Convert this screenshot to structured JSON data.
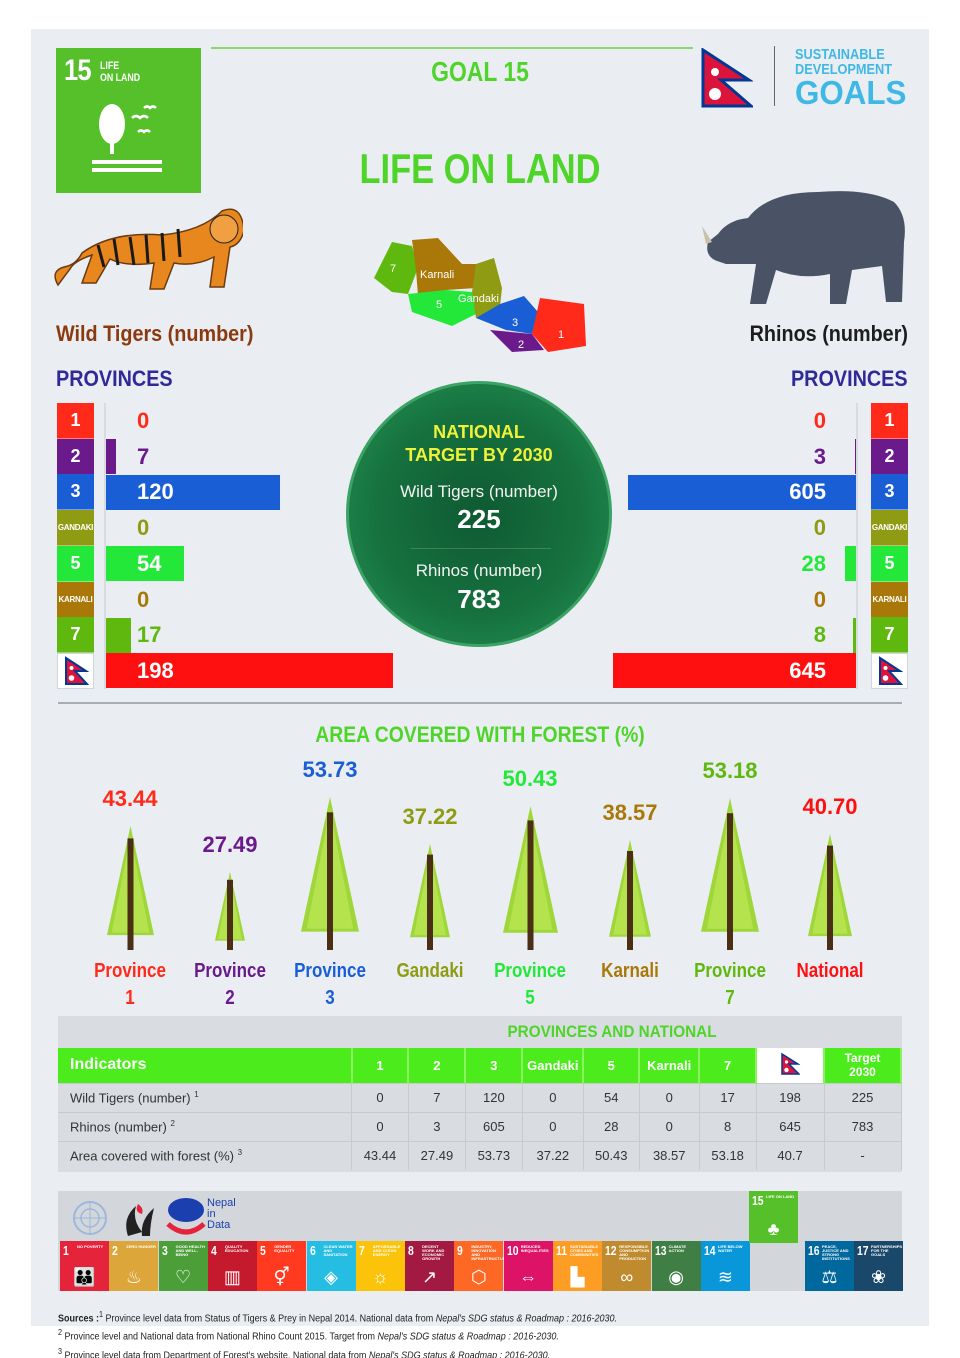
{
  "header": {
    "badge_number": "15",
    "badge_label_line1": "LIFE",
    "badge_label_line2": "ON LAND",
    "goal": "GOAL 15",
    "title": "LIFE ON LAND",
    "sdg_logo_line1": "SUSTAINABLE",
    "sdg_logo_line2": "DEVELOPMENT",
    "sdg_logo_line3": "GOALS"
  },
  "colors": {
    "p1": "#ff2a1a",
    "p2": "#6b1a8c",
    "p3": "#1a5ed6",
    "gandaki": "#8f9b12",
    "p5": "#23e83a",
    "karnali": "#a97808",
    "p7": "#5fb80e",
    "national": "#ff1010",
    "green_title": "#4fd42a",
    "provinces_heading": "#2f2a98"
  },
  "map": {
    "labels": [
      "7",
      "Karnali",
      "5",
      "Gandaki",
      "3",
      "2",
      "1"
    ]
  },
  "tigers": {
    "label": "Wild Tigers (number)",
    "provinces_heading": "PROVINCES",
    "rows": [
      {
        "key": "1",
        "value": "0"
      },
      {
        "key": "2",
        "value": "7"
      },
      {
        "key": "3",
        "value": "120"
      },
      {
        "key": "GANDAKI",
        "value": "0"
      },
      {
        "key": "5",
        "value": "54"
      },
      {
        "key": "KARNALI",
        "value": "0"
      },
      {
        "key": "7",
        "value": "17"
      },
      {
        "key": "flag",
        "value": "198"
      }
    ]
  },
  "rhinos": {
    "label": "Rhinos (number)",
    "provinces_heading": "PROVINCES",
    "rows": [
      {
        "key": "1",
        "value": "0"
      },
      {
        "key": "2",
        "value": "3"
      },
      {
        "key": "3",
        "value": "605"
      },
      {
        "key": "GANDAKI",
        "value": "0"
      },
      {
        "key": "5",
        "value": "28"
      },
      {
        "key": "KARNALI",
        "value": "0"
      },
      {
        "key": "7",
        "value": "8"
      },
      {
        "key": "flag",
        "value": "645"
      }
    ]
  },
  "target": {
    "heading_line1": "NATIONAL",
    "heading_line2": "TARGET BY 2030",
    "tigers_label": "Wild Tigers (number)",
    "tigers_value": "225",
    "rhinos_label": "Rhinos (number)",
    "rhinos_value": "783"
  },
  "forest": {
    "title": "AREA COVERED WITH FOREST (%)",
    "items": [
      {
        "value": "43.44",
        "name1": "Province",
        "name2": "1"
      },
      {
        "value": "27.49",
        "name1": "Province",
        "name2": "2"
      },
      {
        "value": "53.73",
        "name1": "Province",
        "name2": "3"
      },
      {
        "value": "37.22",
        "name1": "Gandaki",
        "name2": ""
      },
      {
        "value": "50.43",
        "name1": "Province",
        "name2": "5"
      },
      {
        "value": "38.57",
        "name1": "Karnali",
        "name2": ""
      },
      {
        "value": "53.18",
        "name1": "Province",
        "name2": "7"
      },
      {
        "value": "40.70",
        "name1": "National",
        "name2": ""
      }
    ]
  },
  "table": {
    "title": "PROVINCES AND NATIONAL",
    "headers": [
      "Indicators",
      "1",
      "2",
      "3",
      "Gandaki",
      "5",
      "Karnali",
      "7",
      "flag",
      "Target 2030"
    ],
    "target_line1": "Target",
    "target_line2": "2030",
    "rows": [
      {
        "label": "Wild Tigers (number)",
        "sup": "1",
        "cells": [
          "0",
          "7",
          "120",
          "0",
          "54",
          "0",
          "17",
          "198",
          "225"
        ]
      },
      {
        "label": "Rhinos (number)",
        "sup": "2",
        "cells": [
          "0",
          "3",
          "605",
          "0",
          "28",
          "0",
          "8",
          "645",
          "783"
        ]
      },
      {
        "label": "Area covered with forest (%)",
        "sup": "3",
        "cells": [
          "43.44",
          "27.49",
          "53.73",
          "37.22",
          "50.43",
          "38.57",
          "53.18",
          "40.7",
          "-"
        ]
      }
    ]
  },
  "footer": {
    "nid_line1": "Nepal",
    "nid_line2": "in",
    "nid_line3": "Data",
    "sdg_tiles": [
      {
        "n": "1",
        "t": "NO POVERTY",
        "icon": "family-icon",
        "glyph": "👪",
        "color": "#e5243b"
      },
      {
        "n": "2",
        "t": "ZERO HUNGER",
        "icon": "bowl-icon",
        "glyph": "♨",
        "color": "#dda63a"
      },
      {
        "n": "3",
        "t": "GOOD HEALTH AND WELL-BEING",
        "icon": "heartbeat-icon",
        "glyph": "♡",
        "color": "#4c9f38"
      },
      {
        "n": "4",
        "t": "QUALITY EDUCATION",
        "icon": "book-icon",
        "glyph": "▥",
        "color": "#c5192d"
      },
      {
        "n": "5",
        "t": "GENDER EQUALITY",
        "icon": "gender-icon",
        "glyph": "⚥",
        "color": "#ff3a21"
      },
      {
        "n": "6",
        "t": "CLEAN WATER AND SANITATION",
        "icon": "water-icon",
        "glyph": "◈",
        "color": "#26bde2"
      },
      {
        "n": "7",
        "t": "AFFORDABLE AND CLEAN ENERGY",
        "icon": "sun-icon",
        "glyph": "☼",
        "color": "#fcc30b"
      },
      {
        "n": "8",
        "t": "DECENT WORK AND ECONOMIC GROWTH",
        "icon": "growth-chart-icon",
        "glyph": "↗",
        "color": "#a21942"
      },
      {
        "n": "9",
        "t": "INDUSTRY, INNOVATION AND INFRASTRUCTURE",
        "icon": "cubes-icon",
        "glyph": "⬡",
        "color": "#fd6925"
      },
      {
        "n": "10",
        "t": "REDUCED INEQUALITIES",
        "icon": "equal-arrows-icon",
        "glyph": "⇔",
        "color": "#dd1367"
      },
      {
        "n": "11",
        "t": "SUSTAINABLE CITIES AND COMMUNITIES",
        "icon": "city-icon",
        "glyph": "▙",
        "color": "#fd9d24"
      },
      {
        "n": "12",
        "t": "RESPONSIBLE CONSUMPTION AND PRODUCTION",
        "icon": "infinity-icon",
        "glyph": "∞",
        "color": "#bf8b2e"
      },
      {
        "n": "13",
        "t": "CLIMATE ACTION",
        "icon": "eye-globe-icon",
        "glyph": "◉",
        "color": "#3f7e44"
      },
      {
        "n": "14",
        "t": "LIFE BELOW WATER",
        "icon": "fish-icon",
        "glyph": "≋",
        "color": "#0a97d9"
      },
      {
        "n": "15",
        "t": "LIFE ON LAND",
        "icon": "tree-icon",
        "glyph": "♣",
        "color": "#56c02b"
      },
      {
        "n": "16",
        "t": "PEACE, JUSTICE AND STRONG INSTITUTIONS",
        "icon": "dove-icon",
        "glyph": "⚖",
        "color": "#00689d"
      },
      {
        "n": "17",
        "t": "PARTNERSHIPS FOR THE GOALS",
        "icon": "rings-icon",
        "glyph": "❀",
        "color": "#19486a"
      }
    ],
    "sources_label": "Sources :",
    "source1_plain": " Province level data from Status of Tigers & Prey in Nepal 2014. National data from ",
    "source1_italic": "Nepal's SDG status & Roadmap : 2016-2030.",
    "source2_plain": " Province level and National data from National Rhino Count 2015. Target from ",
    "source2_italic": "Nepal's SDG status & Roadmap : 2016-2030.",
    "source3_plain": " Province level data from Department of Forest's  website. National data from ",
    "source3_italic": "Nepal's SDG status & Roadmap : 2016-2030."
  },
  "chart_data": [
    {
      "type": "bar",
      "title": "Wild Tigers (number)",
      "orientation": "horizontal",
      "categories": [
        "Province 1",
        "Province 2",
        "Province 3",
        "Gandaki",
        "Province 5",
        "Karnali",
        "Province 7",
        "National"
      ],
      "values": [
        0,
        7,
        120,
        0,
        54,
        0,
        17,
        198
      ],
      "target_2030": 225
    },
    {
      "type": "bar",
      "title": "Rhinos (number)",
      "orientation": "horizontal",
      "categories": [
        "Province 1",
        "Province 2",
        "Province 3",
        "Gandaki",
        "Province 5",
        "Karnali",
        "Province 7",
        "National"
      ],
      "values": [
        0,
        3,
        605,
        0,
        28,
        0,
        8,
        645
      ],
      "target_2030": 783
    },
    {
      "type": "bar",
      "title": "AREA COVERED WITH FOREST (%)",
      "categories": [
        "Province 1",
        "Province 2",
        "Province 3",
        "Gandaki",
        "Province 5",
        "Karnali",
        "Province 7",
        "National"
      ],
      "values": [
        43.44,
        27.49,
        53.73,
        37.22,
        50.43,
        38.57,
        53.18,
        40.7
      ],
      "ylabel": "%"
    },
    {
      "type": "table",
      "title": "PROVINCES AND NATIONAL",
      "columns": [
        "Indicators",
        "1",
        "2",
        "3",
        "Gandaki",
        "5",
        "Karnali",
        "7",
        "Nepal",
        "Target 2030"
      ],
      "rows": [
        [
          "Wild Tigers (number)",
          0,
          7,
          120,
          0,
          54,
          0,
          17,
          198,
          225
        ],
        [
          "Rhinos (number)",
          0,
          3,
          605,
          0,
          28,
          0,
          8,
          645,
          783
        ],
        [
          "Area covered with forest (%)",
          43.44,
          27.49,
          53.73,
          37.22,
          50.43,
          38.57,
          53.18,
          40.7,
          "-"
        ]
      ]
    }
  ]
}
